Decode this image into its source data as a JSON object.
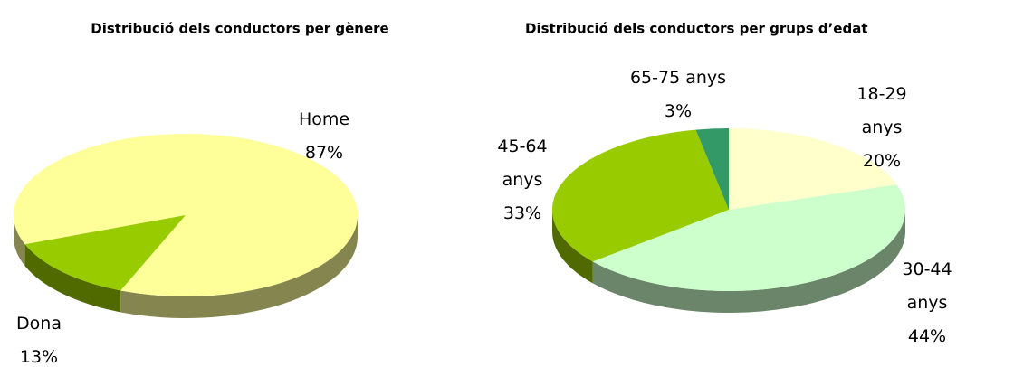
{
  "chart_data": [
    {
      "type": "pie",
      "title": "Distribució dels conductors per gènere",
      "categories": [
        "Home",
        "Dona"
      ],
      "values": [
        87,
        13
      ],
      "value_labels": [
        "87%",
        "13%"
      ],
      "colors": [
        "#ffff99",
        "#99cc00"
      ]
    },
    {
      "type": "pie",
      "title": "Distribució dels conductors per grups d’edat",
      "categories": [
        "18-29 anys",
        "30-44 anys",
        "45-64 anys",
        "65-75 anys"
      ],
      "values": [
        20,
        44,
        33,
        3
      ],
      "value_labels": [
        "20%",
        "44%",
        "33%",
        "3%"
      ],
      "colors": [
        "#ffffcc",
        "#ccffcc",
        "#99cc00",
        "#339966"
      ]
    }
  ]
}
